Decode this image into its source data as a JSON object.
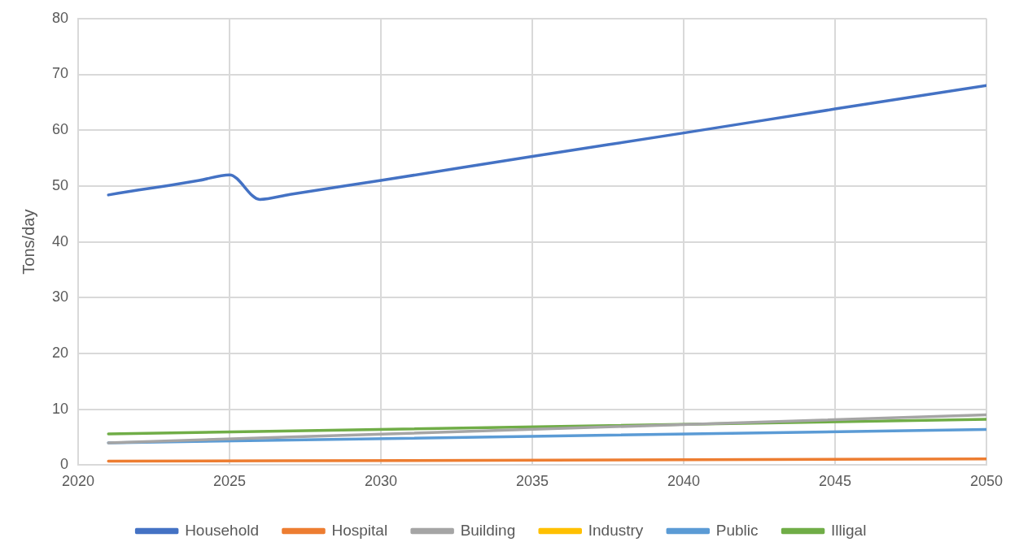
{
  "chart_data": {
    "type": "line",
    "ylabel": "Tons/day",
    "xlim": [
      2020,
      2050
    ],
    "xticks": [
      2020,
      2025,
      2030,
      2035,
      2040,
      2045,
      2050
    ],
    "ylim": [
      0,
      80
    ],
    "yticks": [
      0,
      10,
      20,
      30,
      40,
      50,
      60,
      70,
      80
    ],
    "grid": true,
    "legend": "bottom",
    "marker": "none",
    "line_style": "solid",
    "series": [
      {
        "name": "Household",
        "color": "#4472c4",
        "x": [
          2021,
          2022,
          2023,
          2024,
          2025,
          2026,
          2027,
          2030,
          2035,
          2040,
          2045,
          2050
        ],
        "values": [
          48.4,
          49.3,
          50.1,
          51.0,
          52.0,
          47.6,
          48.5,
          51.0,
          55.3,
          59.5,
          63.8,
          68.0
        ]
      },
      {
        "name": "Hospital",
        "color": "#ed7d31",
        "x": [
          2021,
          2050
        ],
        "values": [
          0.7,
          1.1
        ]
      },
      {
        "name": "Building",
        "color": "#a5a5a5",
        "x": [
          2021,
          2050
        ],
        "values": [
          4.0,
          9.0
        ]
      },
      {
        "name": "Industry",
        "color": "#ffc000"
      },
      {
        "name": "Public",
        "color": "#5b9bd5",
        "x": [
          2021,
          2050
        ],
        "values": [
          4.0,
          6.4
        ]
      },
      {
        "name": "Illigal",
        "color": "#70ad47",
        "x": [
          2021,
          2050
        ],
        "values": [
          5.6,
          8.2
        ]
      }
    ]
  }
}
